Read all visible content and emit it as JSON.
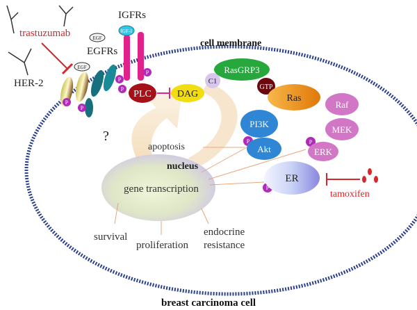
{
  "labels": {
    "cell_membrane": "cell membrane",
    "breast_carcinoma_cell": "breast carcinoma cell",
    "nucleus": "nucleus",
    "gene_transcription": "gene transcription",
    "igfrs": "IGFRs",
    "egfrs": "EGFRs",
    "her2": "HER-2",
    "trastuzumab": "trastuzumab",
    "tamoxifen": "tamoxifen",
    "rasgrp3": "RasGRP3",
    "c1": "C1",
    "gtp": "GTP",
    "ras": "Ras",
    "plc": "PLC",
    "dag": "DAG",
    "pi3k": "PI3K",
    "akt": "Akt",
    "raf": "Raf",
    "mek": "MEK",
    "erk": "ERK",
    "er": "ER",
    "egf": "EGF",
    "igf1": "IGF-1",
    "p": "P",
    "question": "?",
    "apoptosis": "apoptosis",
    "survival": "survival",
    "proliferation": "proliferation",
    "endocrine": "endocrine",
    "resistance": "resistance"
  },
  "colors": {
    "membrane": "#2b3f8a",
    "inhibitor": "#d8262a",
    "phosphate": "#b02cb8",
    "igfr": "#e0228a",
    "egfr": "#17707e",
    "rasgrp3": "#26a83d",
    "ras": "#e88a12",
    "plc": "#a61018",
    "dag": "#f2dd12",
    "pi3k": "#2e86d4",
    "mapk": "#d276c6",
    "er": "#7a7ad8"
  }
}
